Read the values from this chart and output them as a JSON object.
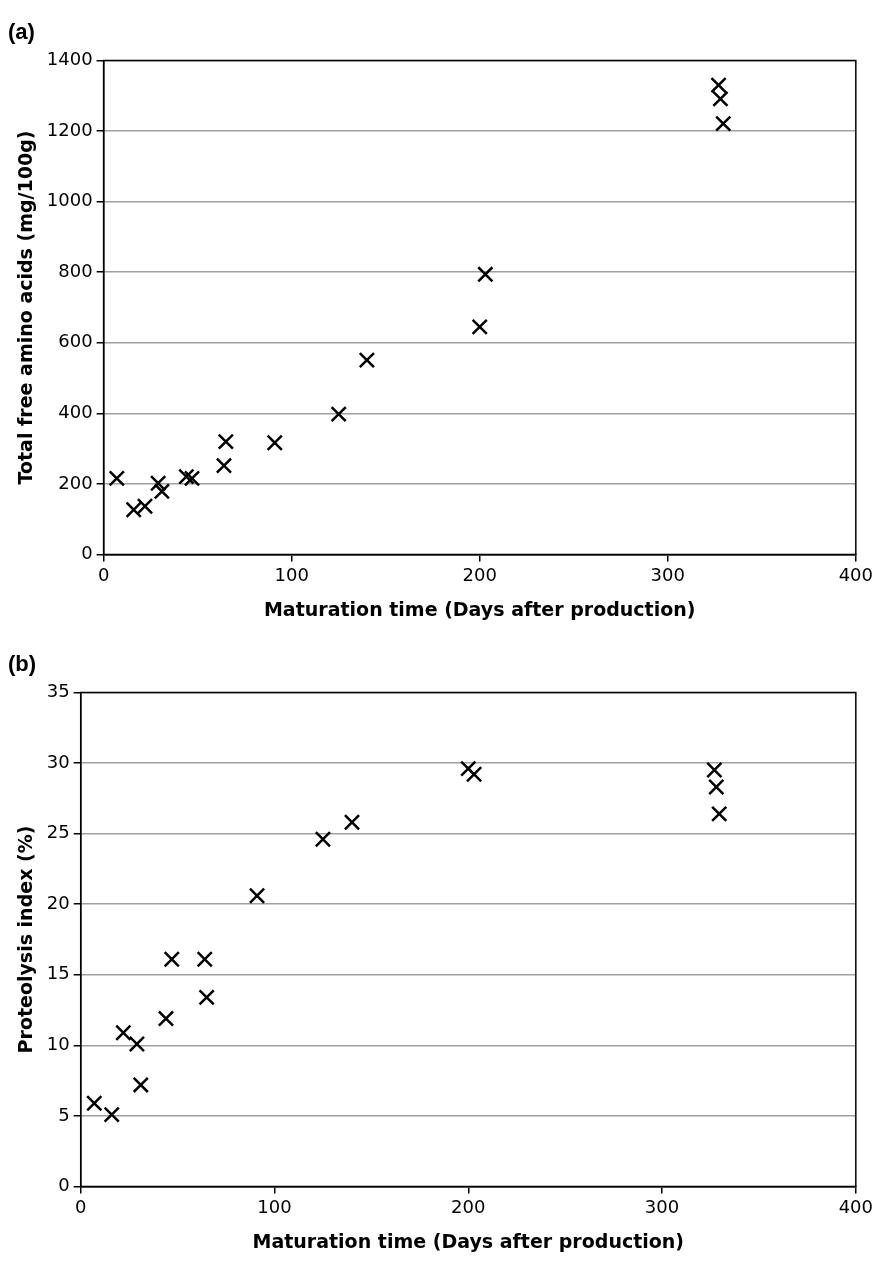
{
  "chart_data": [
    {
      "type": "scatter",
      "title": "(a)",
      "xlabel": "Maturation time (Days after production)",
      "ylabel": "Total free amino acids (mg/100g)",
      "marker": "cross",
      "grid": "y",
      "legend": false,
      "x": [
        7,
        16,
        22,
        29,
        31,
        44,
        47,
        64,
        65,
        91,
        125,
        140,
        200,
        203,
        327,
        328,
        329.5
      ],
      "series": [
        {
          "color": "#000000",
          "values": [
            216,
            127,
            137,
            202,
            179,
            221,
            216,
            252,
            320,
            317,
            398,
            551,
            645,
            794,
            1330,
            1291,
            1221
          ]
        }
      ],
      "xlim": [
        0,
        400
      ],
      "xticks": [
        0,
        100,
        200,
        300,
        400
      ],
      "ylim": [
        0,
        1400
      ],
      "yticks": [
        0,
        200,
        400,
        600,
        800,
        1000,
        1200,
        1400
      ]
    },
    {
      "type": "scatter",
      "title": "(b)",
      "xlabel": "Maturation time (Days after production)",
      "ylabel": "Proteolysis index (%)",
      "marker": "cross",
      "grid": "y",
      "legend": false,
      "x": [
        7,
        16,
        22,
        29,
        31,
        44,
        47,
        64,
        65,
        91,
        125,
        140,
        200,
        203,
        327,
        328,
        329.5
      ],
      "series": [
        {
          "color": "#000000",
          "values": [
            5.9,
            5.1,
            10.9,
            10.1,
            7.2,
            11.9,
            16.1,
            16.1,
            13.4,
            20.6,
            24.6,
            25.8,
            29.6,
            29.2,
            29.5,
            28.3,
            26.4
          ]
        }
      ],
      "xlim": [
        0,
        400
      ],
      "xticks": [
        0,
        100,
        200,
        300,
        400
      ],
      "ylim": [
        0,
        35
      ],
      "yticks": [
        0,
        5,
        10,
        15,
        20,
        25,
        30,
        35
      ]
    }
  ]
}
